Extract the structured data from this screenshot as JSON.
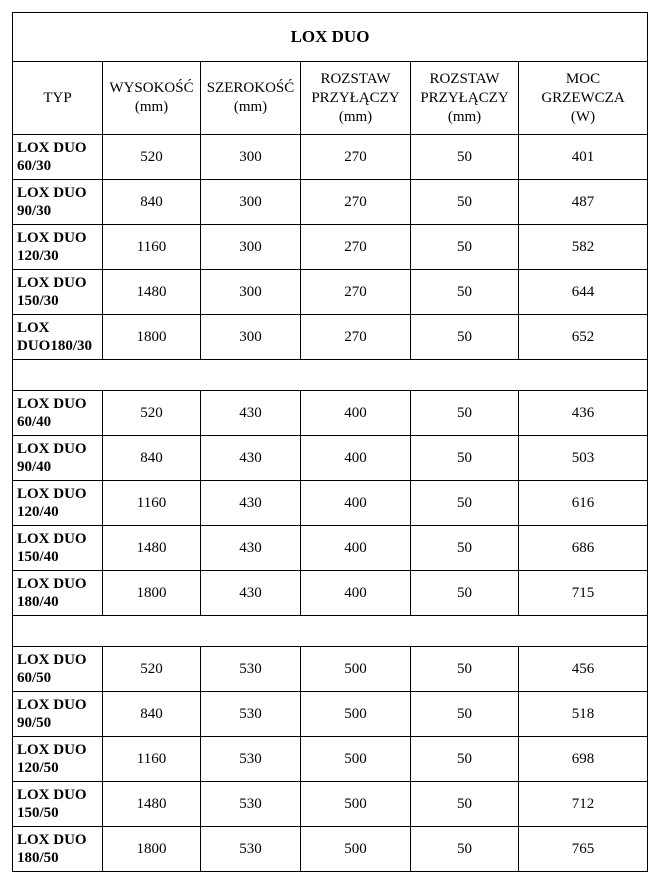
{
  "title": "LOX DUO",
  "columns": [
    "TYP",
    "WYSOKOŚĆ (mm)",
    "SZEROKOŚĆ (mm)",
    "ROZSTAW PRZYŁĄCZY (mm)",
    "ROZSTAW PRZYŁĄCZY (mm)",
    "MOC GRZEWCZA (W)"
  ],
  "groups": [
    {
      "rows": [
        {
          "typ": "LOX DUO 60/30",
          "h": "520",
          "w": "300",
          "r1": "270",
          "r2": "50",
          "moc": "401"
        },
        {
          "typ": "LOX DUO 90/30",
          "h": "840",
          "w": "300",
          "r1": "270",
          "r2": "50",
          "moc": "487"
        },
        {
          "typ": "LOX DUO 120/30",
          "h": "1160",
          "w": "300",
          "r1": "270",
          "r2": "50",
          "moc": "582"
        },
        {
          "typ": "LOX DUO 150/30",
          "h": "1480",
          "w": "300",
          "r1": "270",
          "r2": "50",
          "moc": "644"
        },
        {
          "typ": "LOX DUO180/30",
          "h": "1800",
          "w": "300",
          "r1": "270",
          "r2": "50",
          "moc": "652"
        }
      ]
    },
    {
      "rows": [
        {
          "typ": "LOX DUO 60/40",
          "h": "520",
          "w": "430",
          "r1": "400",
          "r2": "50",
          "moc": "436"
        },
        {
          "typ": "LOX DUO 90/40",
          "h": "840",
          "w": "430",
          "r1": "400",
          "r2": "50",
          "moc": "503"
        },
        {
          "typ": "LOX DUO 120/40",
          "h": "1160",
          "w": "430",
          "r1": "400",
          "r2": "50",
          "moc": "616"
        },
        {
          "typ": "LOX DUO 150/40",
          "h": "1480",
          "w": "430",
          "r1": "400",
          "r2": "50",
          "moc": "686"
        },
        {
          "typ": "LOX DUO 180/40",
          "h": "1800",
          "w": "430",
          "r1": "400",
          "r2": "50",
          "moc": "715"
        }
      ]
    },
    {
      "rows": [
        {
          "typ": "LOX DUO 60/50",
          "h": "520",
          "w": "530",
          "r1": "500",
          "r2": "50",
          "moc": "456"
        },
        {
          "typ": "LOX DUO 90/50",
          "h": "840",
          "w": "530",
          "r1": "500",
          "r2": "50",
          "moc": "518"
        },
        {
          "typ": "LOX DUO 120/50",
          "h": "1160",
          "w": "530",
          "r1": "500",
          "r2": "50",
          "moc": "698"
        },
        {
          "typ": "LOX DUO 150/50",
          "h": "1480",
          "w": "530",
          "r1": "500",
          "r2": "50",
          "moc": "712"
        },
        {
          "typ": "LOX DUO 180/50",
          "h": "1800",
          "w": "530",
          "r1": "500",
          "r2": "50",
          "moc": "765"
        }
      ]
    }
  ]
}
